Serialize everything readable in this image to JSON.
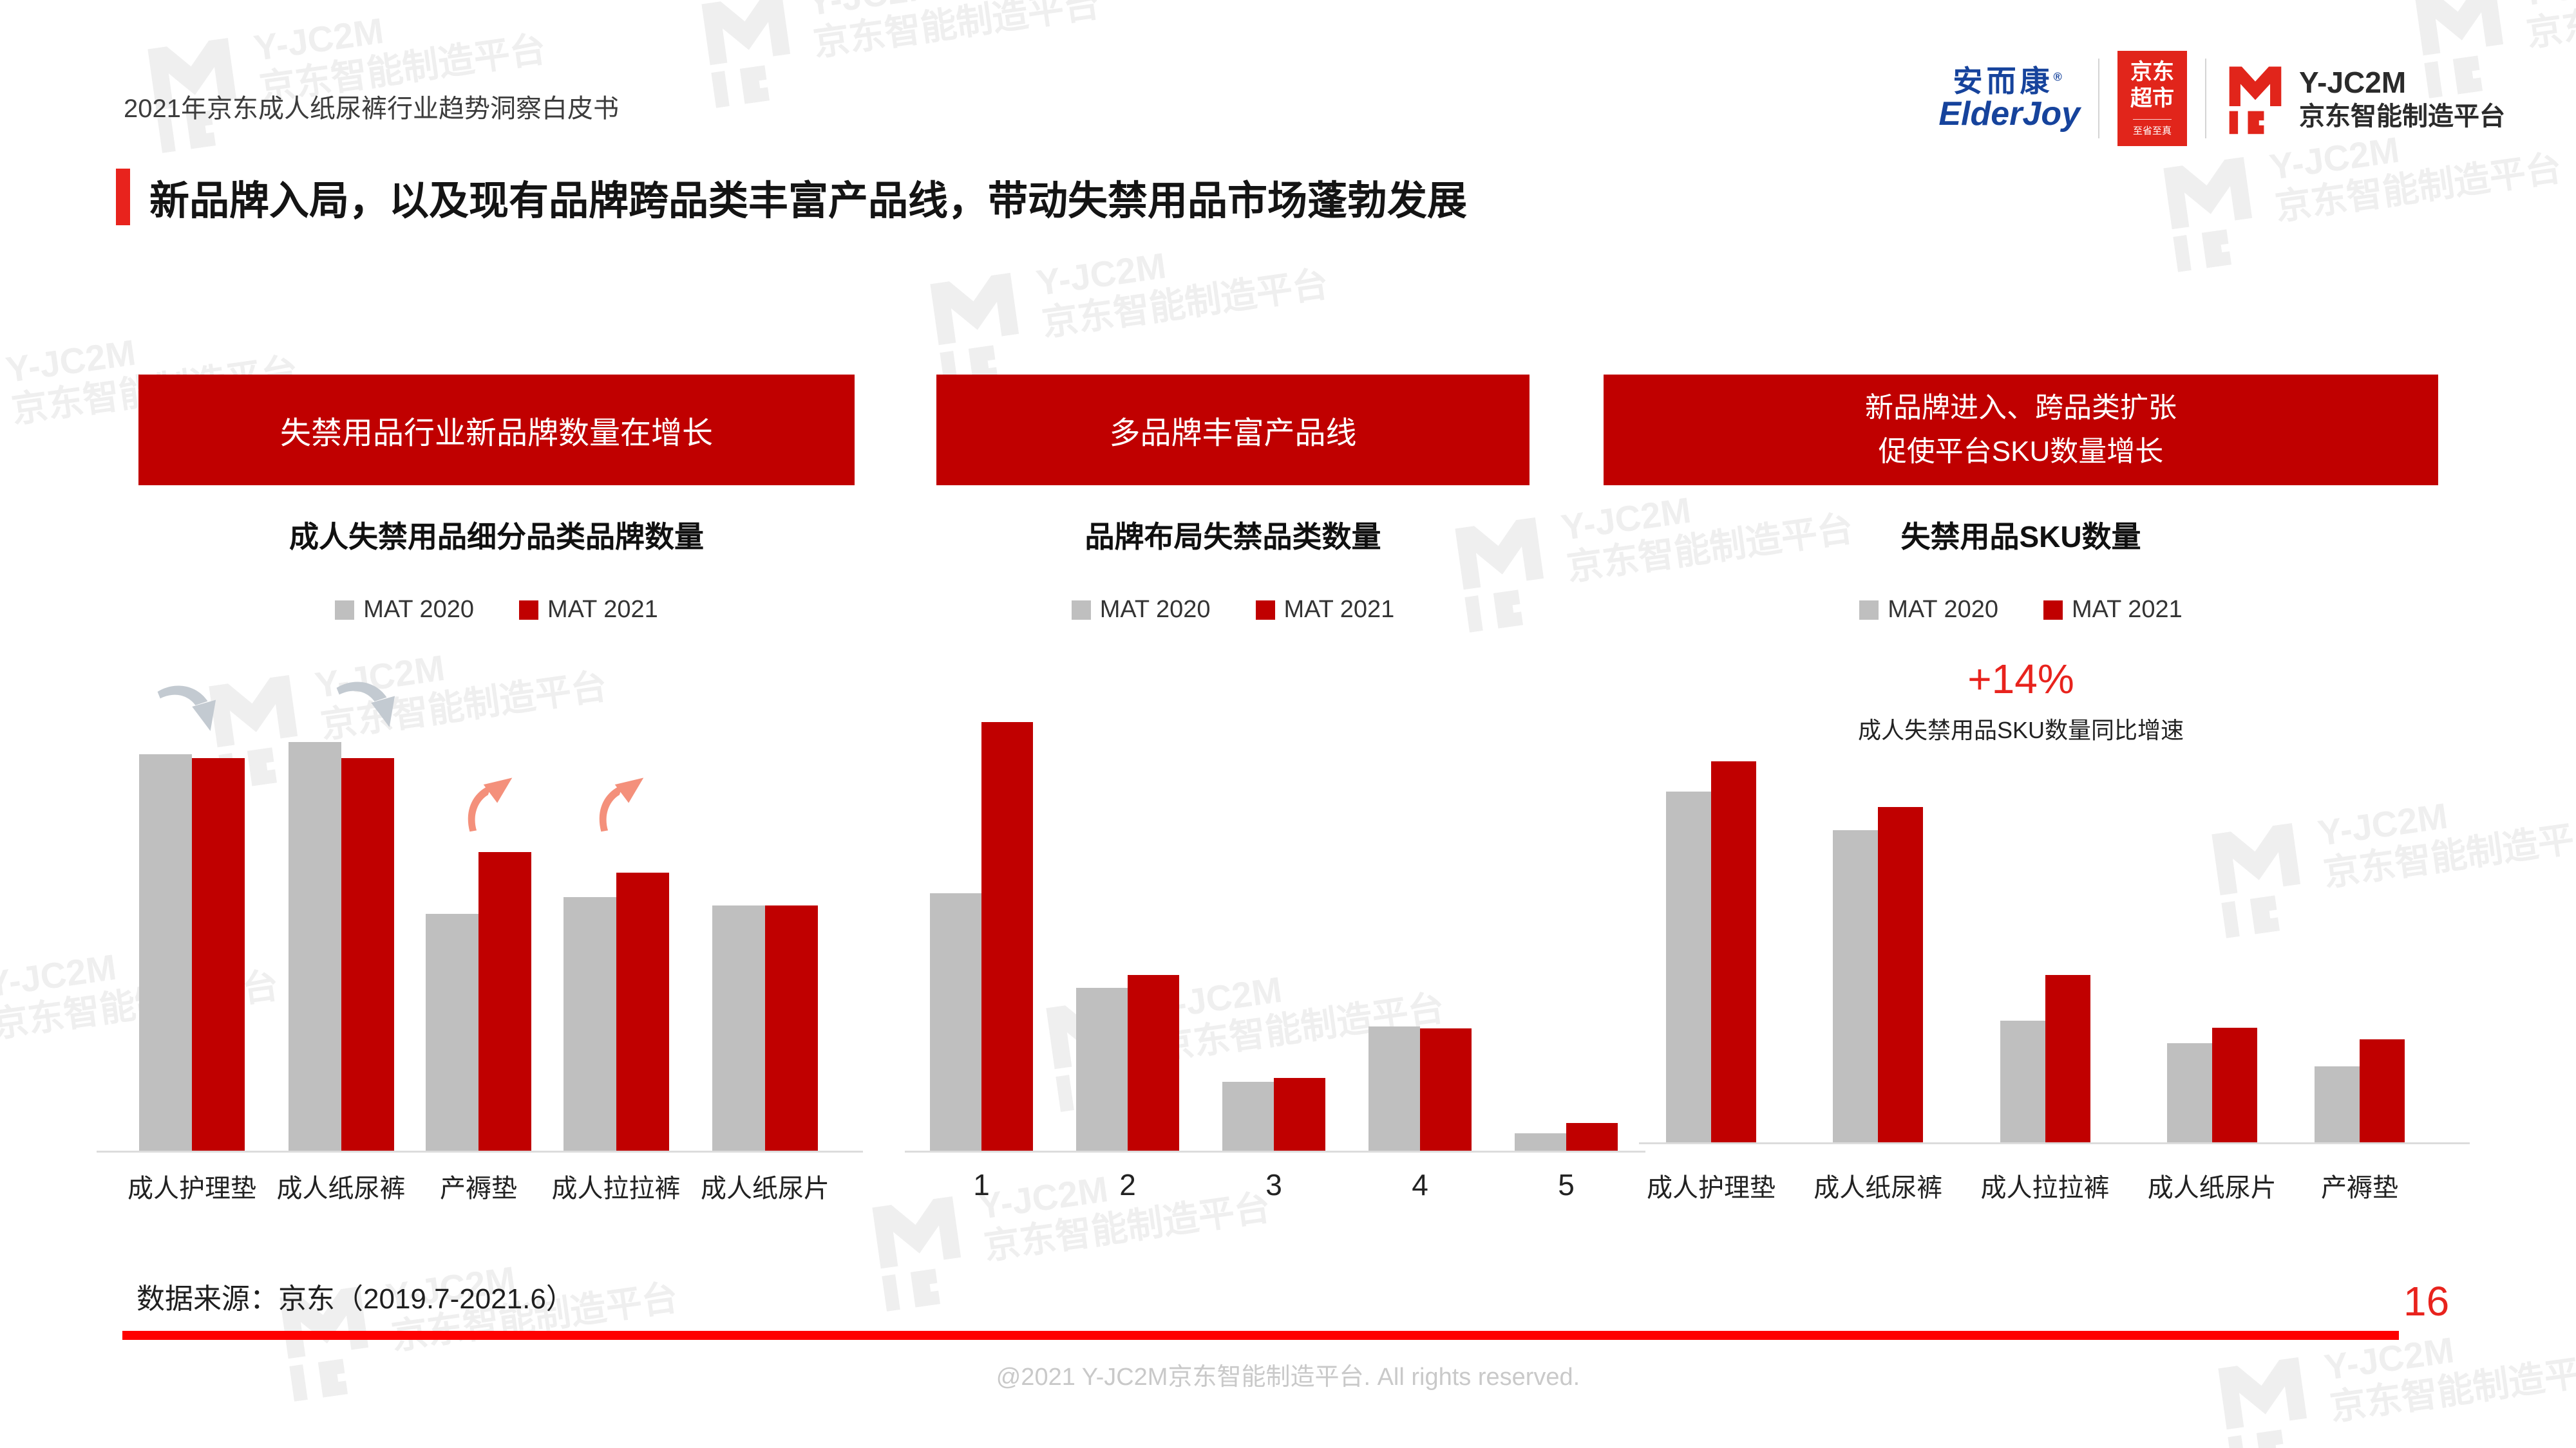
{
  "page": {
    "doc_title": "2021年京东成人纸尿裤行业趋势洞察白皮书",
    "slide_title": "新品牌入局，以及现有品牌跨品类丰富产品线，带动失禁用品市场蓬勃发展",
    "source_note": "数据来源：京东（2019.7-2021.6）",
    "page_number": "16",
    "copyright": "@2021 Y-JC2M京东智能制造平台. All rights reserved."
  },
  "logos": {
    "elderjoy_cn": "安而康",
    "elderjoy_reg": "®",
    "elderjoy_en": "ElderJoy",
    "jd_market_line1": "京东",
    "jd_market_line2": "超市",
    "jd_market_sub": "至省至真",
    "yjc2m_name": "Y-JC2M",
    "yjc2m_sub": "京东智能制造平台"
  },
  "watermark": {
    "line1": "Y-JC2M",
    "line2": "京东智能制造平台"
  },
  "colors": {
    "banner_red": "#c00000",
    "bar_red": "#c00000",
    "bar_gray": "#bfbfbf",
    "accent_red": "#e8231d",
    "footer_line_red": "#fe0100",
    "arrow_gray": "#c3cad1",
    "arrow_salmon": "#f4907b"
  },
  "banners": [
    {
      "title": "失禁用品行业新品牌数量在增长"
    },
    {
      "title": "多品牌丰富产品线"
    },
    {
      "title_line1": "新品牌进入、跨品类扩张",
      "title_line2": "促使平台SKU数量增长"
    }
  ],
  "legend": {
    "mat2020": "MAT 2020",
    "mat2021": "MAT 2021"
  },
  "chart_data": [
    {
      "type": "bar",
      "title": "成人失禁用品细分品类品牌数量",
      "categories": [
        "成人护理垫",
        "成人纸尿裤",
        "产褥垫",
        "成人拉拉裤",
        "成人纸尿片"
      ],
      "series": [
        {
          "name": "MAT 2020",
          "color": "#bfbfbf",
          "values": [
            97,
            100,
            58,
            62,
            60
          ]
        },
        {
          "name": "MAT 2021",
          "color": "#c00000",
          "values": [
            96,
            96,
            73,
            68,
            60
          ]
        }
      ],
      "ylim": [
        0,
        100
      ],
      "values_unit": "relative bar height index (no numeric axis shown in chart)",
      "legend": [
        "MAT 2020",
        "MAT 2021"
      ],
      "legend_position": "top-center",
      "grid": false,
      "annotations": [
        "gray down-right arrows above 成人护理垫 and 成人纸尿裤 (slight decline)",
        "salmon up-right arrows above 产褥垫 and 成人拉拉裤 (growth)"
      ]
    },
    {
      "type": "bar",
      "title": "品牌布局失禁品类数量",
      "categories": [
        "1",
        "2",
        "3",
        "4",
        "5"
      ],
      "series": [
        {
          "name": "MAT 2020",
          "color": "#bfbfbf",
          "values": [
            60,
            38,
            16,
            29,
            4
          ]
        },
        {
          "name": "MAT 2021",
          "color": "#c00000",
          "values": [
            100,
            41,
            17,
            28.5,
            6.5
          ]
        }
      ],
      "ylim": [
        0,
        100
      ],
      "values_unit": "relative bar height index (no numeric axis shown in chart)",
      "legend": [
        "MAT 2020",
        "MAT 2021"
      ],
      "legend_position": "top-center",
      "grid": false
    },
    {
      "type": "bar",
      "title": "失禁用品SKU数量",
      "categories": [
        "成人护理垫",
        "成人纸尿裤",
        "成人拉拉裤",
        "成人纸尿片",
        "产褥垫"
      ],
      "series": [
        {
          "name": "MAT 2020",
          "color": "#bfbfbf",
          "values": [
            92,
            82,
            32,
            26,
            20
          ]
        },
        {
          "name": "MAT 2021",
          "color": "#c00000",
          "values": [
            100,
            88,
            44,
            30,
            27
          ]
        }
      ],
      "ylim": [
        0,
        100
      ],
      "values_unit": "relative bar height index (no numeric axis shown in chart)",
      "legend": [
        "MAT 2020",
        "MAT 2021"
      ],
      "legend_position": "top-center",
      "grid": false,
      "annotation": {
        "value": "+14%",
        "label": "成人失禁用品SKU数量同比增速"
      }
    }
  ]
}
